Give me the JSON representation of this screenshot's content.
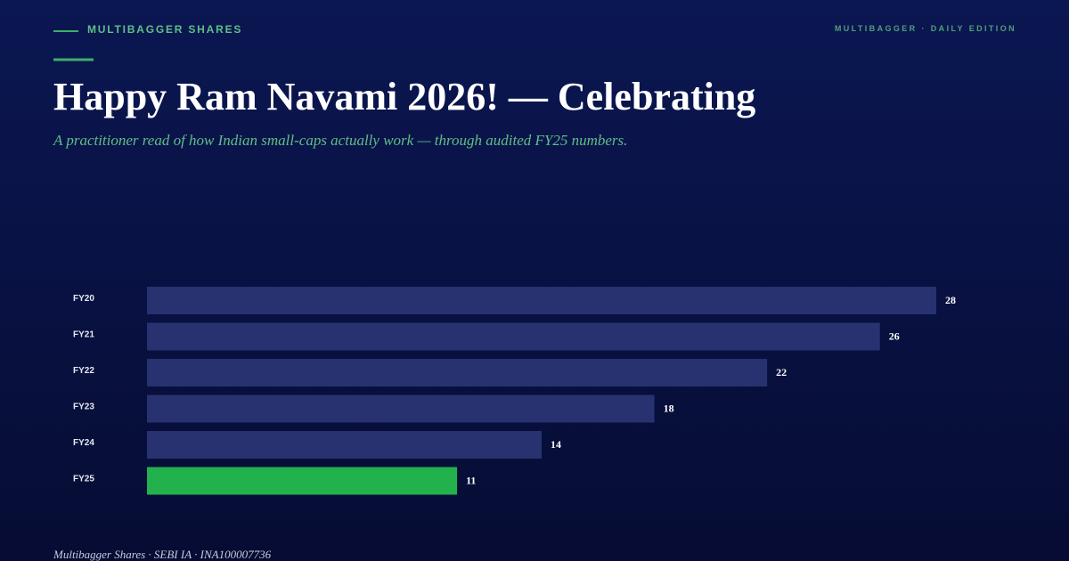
{
  "header": {
    "kicker": "MULTIBAGGER SHARES",
    "edition": "MULTIBAGGER · DAILY EDITION",
    "title": "Happy Ram Navami 2026! — Celebrating",
    "subtitle": "A practitioner read of how Indian small-caps actually work — through audited FY25 numbers."
  },
  "chart_data": {
    "type": "hbar",
    "categories": [
      "FY20",
      "FY21",
      "FY22",
      "FY23",
      "FY24",
      "FY25"
    ],
    "values": [
      28,
      26,
      22,
      18,
      14,
      11
    ],
    "colors": [
      "#283270",
      "#283270",
      "#283270",
      "#283270",
      "#283270",
      "#22b14c"
    ]
  },
  "footer": "Multibagger Shares · SEBI IA · INA100007736"
}
